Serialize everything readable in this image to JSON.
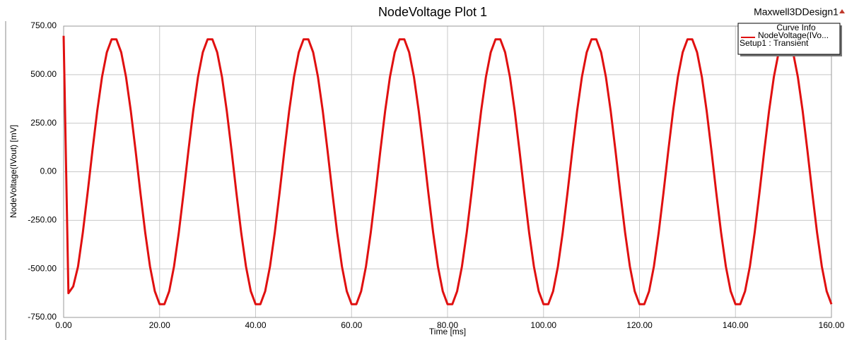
{
  "chart_data": {
    "type": "line",
    "title": "NodeVoltage Plot 1",
    "design_name": "Maxwell3DDesign1",
    "xlabel": "Time [ms]",
    "ylabel": "NodeVoltage(IVout) [mV]",
    "legend": {
      "title": "Curve Info",
      "note": "Setup1 : Transient",
      "corner": "top-right"
    },
    "grid": true,
    "xlim": [
      0,
      160
    ],
    "ylim": [
      -750,
      750
    ],
    "xticks": [
      {
        "value": 0,
        "label": "0.00"
      },
      {
        "value": 20,
        "label": "20.00"
      },
      {
        "value": 40,
        "label": "40.00"
      },
      {
        "value": 60,
        "label": "60.00"
      },
      {
        "value": 80,
        "label": "80.00"
      },
      {
        "value": 100,
        "label": "100.00"
      },
      {
        "value": 120,
        "label": "120.00"
      },
      {
        "value": 140,
        "label": "140.00"
      },
      {
        "value": 160,
        "label": "160.00"
      }
    ],
    "yticks": [
      {
        "value": -750,
        "label": "-750.00"
      },
      {
        "value": -500,
        "label": "-500.00"
      },
      {
        "value": -250,
        "label": "-250.00"
      },
      {
        "value": 0,
        "label": "0.00"
      },
      {
        "value": 250,
        "label": "250.00"
      },
      {
        "value": 500,
        "label": "500.00"
      },
      {
        "value": 750,
        "label": "750.00"
      }
    ],
    "x": [
      0,
      1,
      2,
      3,
      4,
      5,
      6,
      7,
      8,
      9,
      10,
      11,
      12,
      13,
      14,
      15,
      16,
      17,
      18,
      19,
      20,
      21,
      22,
      23,
      24,
      25,
      26,
      27,
      28,
      29,
      30,
      31,
      32,
      33,
      34,
      35,
      36,
      37,
      38,
      39,
      40,
      41,
      42,
      43,
      44,
      45,
      46,
      47,
      48,
      49,
      50,
      51,
      52,
      53,
      54,
      55,
      56,
      57,
      58,
      59,
      60,
      61,
      62,
      63,
      64,
      65,
      66,
      67,
      68,
      69,
      70,
      71,
      72,
      73,
      74,
      75,
      76,
      77,
      78,
      79,
      80,
      81,
      82,
      83,
      84,
      85,
      86,
      87,
      88,
      89,
      90,
      91,
      92,
      93,
      94,
      95,
      96,
      97,
      98,
      99,
      100,
      101,
      102,
      103,
      104,
      105,
      106,
      107,
      108,
      109,
      110,
      111,
      112,
      113,
      114,
      115,
      116,
      117,
      118,
      119,
      120,
      121,
      122,
      123,
      124,
      125,
      126,
      127,
      128,
      129,
      130,
      131,
      132,
      133,
      134,
      135,
      136,
      137,
      138,
      139,
      140,
      141,
      142,
      143,
      144,
      145,
      146,
      147,
      148,
      149,
      150,
      151,
      152,
      153,
      154,
      155,
      156,
      157,
      158,
      159,
      160
    ],
    "series": [
      {
        "name": "NodeVoltage(IVo...",
        "color": "#e01010",
        "values": [
          700,
          -625,
          -590,
          -488,
          -313,
          -108,
          108,
          313,
          488,
          615,
          682,
          682,
          615,
          488,
          313,
          108,
          -108,
          -313,
          -488,
          -615,
          -682,
          -682,
          -615,
          -488,
          -313,
          -108,
          108,
          313,
          488,
          615,
          682,
          682,
          615,
          488,
          313,
          108,
          -108,
          -313,
          -488,
          -615,
          -682,
          -682,
          -615,
          -488,
          -313,
          -108,
          108,
          313,
          488,
          615,
          682,
          682,
          615,
          488,
          313,
          108,
          -108,
          -313,
          -488,
          -615,
          -682,
          -682,
          -615,
          -488,
          -313,
          -108,
          108,
          313,
          488,
          615,
          682,
          682,
          615,
          488,
          313,
          108,
          -108,
          -313,
          -488,
          -615,
          -682,
          -682,
          -615,
          -488,
          -313,
          -108,
          108,
          313,
          488,
          615,
          682,
          682,
          615,
          488,
          313,
          108,
          -108,
          -313,
          -488,
          -615,
          -682,
          -682,
          -615,
          -488,
          -313,
          -108,
          108,
          313,
          488,
          615,
          682,
          682,
          615,
          488,
          313,
          108,
          -108,
          -313,
          -488,
          -615,
          -682,
          -682,
          -615,
          -488,
          -313,
          -108,
          108,
          313,
          488,
          615,
          682,
          682,
          615,
          488,
          313,
          108,
          -108,
          -313,
          -488,
          -615,
          -682,
          -682,
          -615,
          -488,
          -313,
          -108,
          108,
          313,
          488,
          615,
          682,
          682,
          615,
          488,
          313,
          108,
          -108,
          -313,
          -488,
          -615,
          -682
        ]
      }
    ]
  }
}
